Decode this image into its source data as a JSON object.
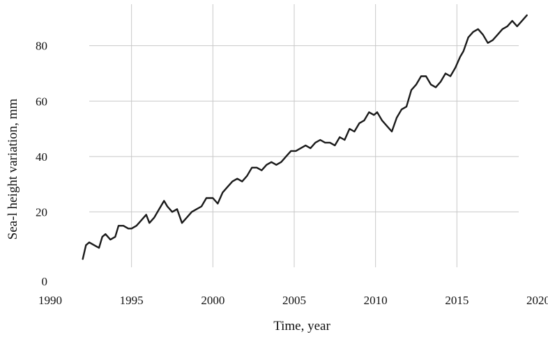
{
  "chart_data": {
    "type": "line",
    "title": "",
    "xlabel": "Time, year",
    "ylabel": "Sea-l height variation, mm",
    "xlim": [
      1990,
      2020
    ],
    "ylim": [
      0,
      95
    ],
    "x_ticks": [
      "1990",
      "1995",
      "2000",
      "2005",
      "2010",
      "2015",
      "2020"
    ],
    "y_ticks": [
      "0",
      "20",
      "40",
      "60",
      "80"
    ],
    "grid": true,
    "legend": "none",
    "series": [
      {
        "x": [
          1992.0,
          1992.2,
          1992.4,
          1992.7,
          1993.0,
          1993.2,
          1993.4,
          1993.7,
          1994.0,
          1994.2,
          1994.5,
          1994.8,
          1995.0,
          1995.3,
          1995.6,
          1995.9,
          1996.1,
          1996.4,
          1996.7,
          1997.0,
          1997.2,
          1997.5,
          1997.8,
          1998.1,
          1998.4,
          1998.7,
          1999.0,
          1999.3,
          1999.6,
          2000.0,
          2000.3,
          2000.6,
          2000.9,
          2001.2,
          2001.5,
          2001.8,
          2002.1,
          2002.4,
          2002.7,
          2003.0,
          2003.3,
          2003.6,
          2003.9,
          2004.2,
          2004.5,
          2004.8,
          2005.1,
          2005.4,
          2005.7,
          2006.0,
          2006.3,
          2006.6,
          2006.9,
          2007.2,
          2007.5,
          2007.8,
          2008.1,
          2008.4,
          2008.7,
          2009.0,
          2009.3,
          2009.6,
          2009.9,
          2010.1,
          2010.4,
          2010.7,
          2011.0,
          2011.3,
          2011.6,
          2011.9,
          2012.2,
          2012.5,
          2012.8,
          2013.1,
          2013.4,
          2013.7,
          2014.0,
          2014.3,
          2014.6,
          2014.9,
          2015.2,
          2015.4,
          2015.7,
          2016.0,
          2016.3,
          2016.6,
          2016.9,
          2017.2,
          2017.5,
          2017.8,
          2018.1,
          2018.4,
          2018.7,
          2019.0,
          2019.3
        ],
        "y": [
          3,
          8,
          9,
          8,
          7,
          11,
          12,
          10,
          11,
          15,
          15,
          14,
          14,
          15,
          17,
          19,
          16,
          18,
          21,
          24,
          22,
          20,
          21,
          16,
          18,
          20,
          21,
          22,
          25,
          25,
          23,
          27,
          29,
          31,
          32,
          31,
          33,
          36,
          36,
          35,
          37,
          38,
          37,
          38,
          40,
          42,
          42,
          43,
          44,
          43,
          45,
          46,
          45,
          45,
          44,
          47,
          46,
          50,
          49,
          52,
          53,
          56,
          55,
          56,
          53,
          51,
          49,
          54,
          57,
          58,
          64,
          66,
          69,
          69,
          66,
          65,
          67,
          70,
          69,
          72,
          76,
          78,
          83,
          85,
          86,
          84,
          81,
          82,
          84,
          86,
          87,
          89,
          87,
          89,
          91
        ]
      }
    ]
  }
}
